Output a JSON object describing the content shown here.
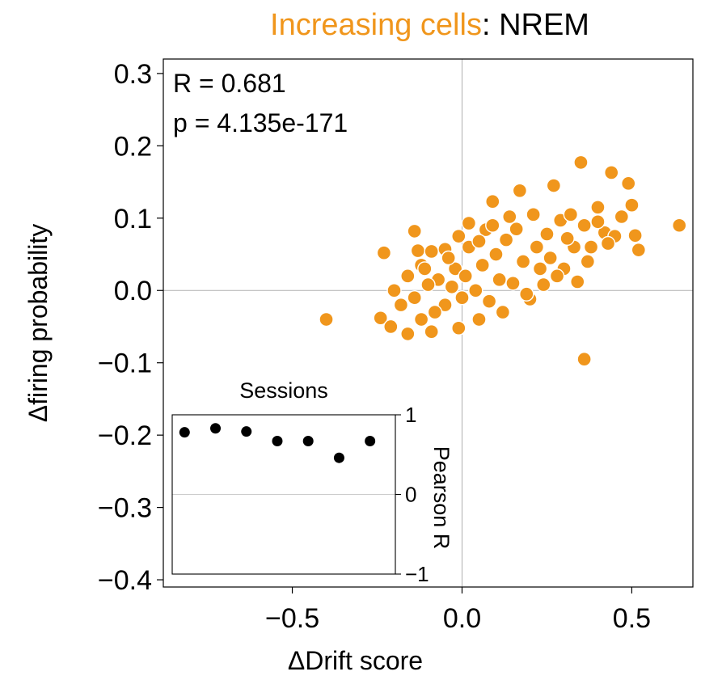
{
  "title": {
    "highlight": "Increasing cells",
    "rest": ": NREM"
  },
  "colors": {
    "accent": "#f0961c",
    "point_edge": "#ffffff",
    "inset_point": "#000000"
  },
  "chart_data": [
    {
      "type": "scatter",
      "xlabel": "ΔDrift score",
      "ylabel": "Δfiring probability",
      "xlim": [
        -0.88,
        0.68
      ],
      "ylim": [
        -0.41,
        0.32
      ],
      "xticks": [
        -0.5,
        0.0,
        0.5
      ],
      "xtick_labels": [
        "−0.5",
        "0.0",
        "0.5"
      ],
      "yticks": [
        0.3,
        0.2,
        0.1,
        0.0,
        -0.1,
        -0.2,
        -0.3,
        -0.4
      ],
      "ytick_labels": [
        "0.3",
        "0.2",
        "0.1",
        "0.0",
        "−0.1",
        "−0.2",
        "−0.3",
        "−0.4"
      ],
      "reference_lines": {
        "x": 0.0,
        "y": 0.0
      },
      "annotation": {
        "r_text": "R = 0.681",
        "p_text": "p = 4.135e-171"
      },
      "points": [
        [
          -0.4,
          -0.04
        ],
        [
          0.35,
          0.177
        ],
        [
          0.44,
          0.163
        ],
        [
          0.49,
          0.148
        ],
        [
          0.64,
          0.09
        ],
        [
          0.36,
          -0.095
        ],
        [
          0.5,
          0.118
        ],
        [
          0.52,
          0.056
        ],
        [
          0.51,
          0.076
        ],
        [
          0.27,
          0.145
        ],
        [
          0.17,
          0.138
        ],
        [
          0.09,
          0.123
        ],
        [
          0.02,
          0.093
        ],
        [
          -0.14,
          0.082
        ],
        [
          -0.23,
          0.052
        ],
        [
          -0.13,
          0.055
        ],
        [
          -0.09,
          0.054
        ],
        [
          -0.05,
          0.057
        ],
        [
          -0.12,
          0.035
        ],
        [
          0.47,
          0.102
        ],
        [
          0.4,
          0.115
        ],
        [
          0.42,
          0.08
        ],
        [
          0.34,
          0.012
        ],
        [
          -0.24,
          -0.038
        ],
        [
          -0.21,
          -0.05
        ],
        [
          -0.16,
          -0.06
        ],
        [
          -0.09,
          -0.057
        ],
        [
          -0.01,
          -0.052
        ],
        [
          0.05,
          -0.04
        ],
        [
          0.12,
          -0.03
        ],
        [
          0.2,
          -0.012
        ],
        [
          0.24,
          0.008
        ],
        [
          0.3,
          0.03
        ],
        [
          0.33,
          0.06
        ],
        [
          0.38,
          0.06
        ],
        [
          0.45,
          0.075
        ],
        [
          0.29,
          0.097
        ],
        [
          0.21,
          0.105
        ],
        [
          0.14,
          0.102
        ],
        [
          0.07,
          0.084
        ],
        [
          -0.02,
          0.03
        ],
        [
          -0.07,
          0.015
        ],
        [
          -0.1,
          0.008
        ],
        [
          -0.14,
          -0.01
        ],
        [
          -0.18,
          -0.02
        ],
        [
          -0.2,
          0.0
        ],
        [
          -0.16,
          0.02
        ],
        [
          -0.11,
          0.03
        ],
        [
          -0.04,
          0.045
        ],
        [
          0.01,
          0.02
        ],
        [
          0.04,
          0.0
        ],
        [
          0.08,
          -0.015
        ],
        [
          0.15,
          0.01
        ],
        [
          0.18,
          0.04
        ],
        [
          0.22,
          0.06
        ],
        [
          0.26,
          0.045
        ],
        [
          0.31,
          0.072
        ],
        [
          0.36,
          0.09
        ],
        [
          0.4,
          0.095
        ],
        [
          0.43,
          0.065
        ],
        [
          0.13,
          0.07
        ],
        [
          0.1,
          0.05
        ],
        [
          0.06,
          0.035
        ],
        [
          0.0,
          -0.01
        ],
        [
          -0.05,
          -0.02
        ],
        [
          -0.08,
          -0.03
        ],
        [
          -0.12,
          -0.04
        ],
        [
          -0.03,
          0.005
        ],
        [
          0.02,
          0.06
        ],
        [
          0.16,
          0.085
        ],
        [
          0.25,
          0.078
        ],
        [
          0.28,
          0.02
        ],
        [
          0.19,
          -0.005
        ],
        [
          0.11,
          0.015
        ],
        [
          0.09,
          0.09
        ],
        [
          0.32,
          0.105
        ],
        [
          0.37,
          0.04
        ],
        [
          0.23,
          0.03
        ],
        [
          -0.01,
          0.075
        ],
        [
          0.05,
          0.068
        ]
      ]
    },
    {
      "type": "scatter",
      "title": "Sessions",
      "ylabel": "Pearson R",
      "ylim": [
        -1,
        1
      ],
      "yticks": [
        1,
        0,
        -1
      ],
      "ytick_labels": [
        "1",
        "0",
        "−1"
      ],
      "reference_line_y": 0,
      "session_index": [
        1,
        2,
        3,
        4,
        5,
        6,
        7
      ],
      "values": [
        0.78,
        0.83,
        0.79,
        0.67,
        0.67,
        0.46,
        0.67
      ]
    }
  ]
}
